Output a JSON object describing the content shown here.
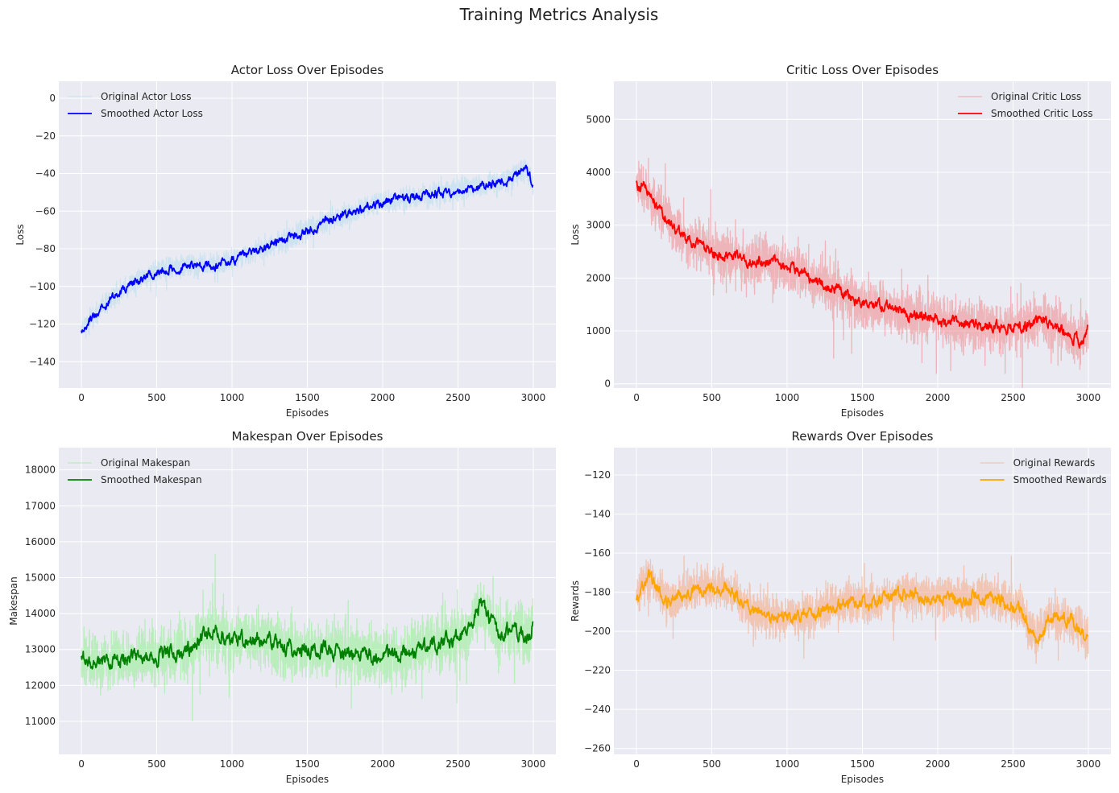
{
  "figure": {
    "title": "Training Metrics Analysis"
  },
  "chart_data": [
    {
      "type": "line",
      "title": "Actor Loss Over Episodes",
      "xlabel": "Episodes",
      "ylabel": "Loss",
      "xlim": [
        -150,
        3150
      ],
      "ylim": [
        -154,
        9
      ],
      "xticks": [
        0,
        500,
        1000,
        1500,
        2000,
        2500,
        3000
      ],
      "yticks": [
        0,
        -20,
        -40,
        -60,
        -80,
        -100,
        -120,
        -140
      ],
      "legend": "upper-left",
      "grid": true,
      "series": [
        {
          "name": "Original Actor Loss",
          "color": "#b5dcee",
          "alpha": 0.55,
          "width": 1.3,
          "smoothed": false
        },
        {
          "name": "Smoothed Actor Loss",
          "color": "#0000ff",
          "alpha": 1,
          "width": 1.8,
          "smoothed": true
        }
      ],
      "trend": [
        [
          0,
          -122
        ],
        [
          50,
          -119
        ],
        [
          100,
          -115
        ],
        [
          200,
          -106
        ],
        [
          300,
          -100
        ],
        [
          500,
          -92
        ],
        [
          700,
          -89
        ],
        [
          900,
          -89
        ],
        [
          1000,
          -86
        ],
        [
          1200,
          -80
        ],
        [
          1400,
          -74
        ],
        [
          1600,
          -66
        ],
        [
          1800,
          -61
        ],
        [
          2000,
          -55
        ],
        [
          2200,
          -53
        ],
        [
          2400,
          -50
        ],
        [
          2600,
          -47
        ],
        [
          2800,
          -45
        ],
        [
          2950,
          -37
        ],
        [
          3000,
          -46
        ]
      ],
      "noise_amp": 9,
      "smooth_noise": 3.5,
      "n_points": 3000,
      "seed": 11
    },
    {
      "type": "line",
      "title": "Critic Loss Over Episodes",
      "xlabel": "Episodes",
      "ylabel": "Loss",
      "xlim": [
        -150,
        3150
      ],
      "ylim": [
        -80,
        5720
      ],
      "xticks": [
        0,
        500,
        1000,
        1500,
        2000,
        2500,
        3000
      ],
      "yticks": [
        0,
        1000,
        2000,
        3000,
        4000,
        5000
      ],
      "legend": "upper-right",
      "grid": true,
      "series": [
        {
          "name": "Original Critic Loss",
          "color": "#f08080",
          "alpha": 0.5,
          "width": 1.3,
          "smoothed": false
        },
        {
          "name": "Smoothed Critic Loss",
          "color": "#ff0000",
          "alpha": 1,
          "width": 1.8,
          "smoothed": true
        }
      ],
      "trend": [
        [
          0,
          3800
        ],
        [
          50,
          3700
        ],
        [
          150,
          3300
        ],
        [
          300,
          2800
        ],
        [
          500,
          2500
        ],
        [
          700,
          2350
        ],
        [
          900,
          2300
        ],
        [
          1100,
          2100
        ],
        [
          1300,
          1800
        ],
        [
          1500,
          1500
        ],
        [
          1700,
          1400
        ],
        [
          1900,
          1250
        ],
        [
          2100,
          1150
        ],
        [
          2300,
          1100
        ],
        [
          2500,
          1050
        ],
        [
          2700,
          1200
        ],
        [
          2850,
          1000
        ],
        [
          2950,
          800
        ],
        [
          3000,
          1080
        ]
      ],
      "noise_amp": 750,
      "smooth_noise": 160,
      "n_points": 3000,
      "seed": 23
    },
    {
      "type": "line",
      "title": "Makespan Over Episodes",
      "xlabel": "Episodes",
      "ylabel": "Makespan",
      "xlim": [
        -150,
        3150
      ],
      "ylim": [
        10080,
        18620
      ],
      "xticks": [
        0,
        500,
        1000,
        1500,
        2000,
        2500,
        3000
      ],
      "yticks": [
        11000,
        12000,
        13000,
        14000,
        15000,
        16000,
        17000,
        18000
      ],
      "legend": "upper-left",
      "grid": true,
      "series": [
        {
          "name": "Original Makespan",
          "color": "#90ee90",
          "alpha": 0.55,
          "width": 1.3,
          "smoothed": false
        },
        {
          "name": "Smoothed Makespan",
          "color": "#008000",
          "alpha": 1,
          "width": 1.8,
          "smoothed": true
        }
      ],
      "trend": [
        [
          0,
          12900
        ],
        [
          100,
          12600
        ],
        [
          300,
          12800
        ],
        [
          500,
          12800
        ],
        [
          700,
          13000
        ],
        [
          850,
          13500
        ],
        [
          1000,
          13200
        ],
        [
          1200,
          13300
        ],
        [
          1400,
          13000
        ],
        [
          1600,
          13000
        ],
        [
          1800,
          12900
        ],
        [
          2000,
          12800
        ],
        [
          2200,
          12900
        ],
        [
          2400,
          13200
        ],
        [
          2550,
          13400
        ],
        [
          2650,
          14300
        ],
        [
          2750,
          13500
        ],
        [
          2900,
          13500
        ],
        [
          2980,
          13400
        ],
        [
          3000,
          14000
        ]
      ],
      "noise_amp": 1250,
      "smooth_noise": 320,
      "n_points": 3000,
      "seed": 37
    },
    {
      "type": "line",
      "title": "Rewards Over Episodes",
      "xlabel": "Episodes",
      "ylabel": "Rewards",
      "xlim": [
        -150,
        3150
      ],
      "ylim": [
        -263,
        -106
      ],
      "xticks": [
        0,
        500,
        1000,
        1500,
        2000,
        2500,
        3000
      ],
      "yticks": [
        -120,
        -140,
        -160,
        -180,
        -200,
        -220,
        -240,
        -260
      ],
      "legend": "upper-right",
      "grid": true,
      "series": [
        {
          "name": "Original Rewards",
          "color": "#f4a582",
          "alpha": 0.55,
          "width": 1.3,
          "smoothed": false
        },
        {
          "name": "Smoothed Rewards",
          "color": "#ffa500",
          "alpha": 1,
          "width": 1.8,
          "smoothed": true
        }
      ],
      "trend": [
        [
          0,
          -183
        ],
        [
          80,
          -172
        ],
        [
          200,
          -185
        ],
        [
          400,
          -178
        ],
        [
          600,
          -178
        ],
        [
          800,
          -192
        ],
        [
          1000,
          -193
        ],
        [
          1200,
          -190
        ],
        [
          1400,
          -185
        ],
        [
          1600,
          -185
        ],
        [
          1800,
          -180
        ],
        [
          2000,
          -183
        ],
        [
          2200,
          -183
        ],
        [
          2400,
          -183
        ],
        [
          2550,
          -188
        ],
        [
          2650,
          -205
        ],
        [
          2750,
          -193
        ],
        [
          2900,
          -195
        ],
        [
          3000,
          -204
        ]
      ],
      "noise_amp": 17,
      "smooth_noise": 5,
      "n_points": 3000,
      "seed": 51
    }
  ]
}
